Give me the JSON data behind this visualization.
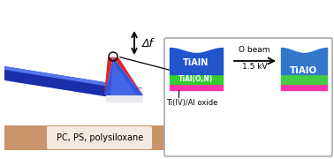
{
  "bg_color": "#ffffff",
  "substrate_color": "#c8956a",
  "substrate_text": "PC, PS, polysiloxane",
  "substrate_text_bg": "#f5e8de",
  "delta_f_text": "Δf",
  "box_border_color": "#aaaaaa",
  "layer_blue_left": "#2255cc",
  "layer_green_left": "#33cc33",
  "layer_pink_left": "#ff33aa",
  "layer_blue_right": "#3377cc",
  "layer_green_right": "#44cc44",
  "layer_pink_right": "#ff33aa",
  "label_tialn": "TiAlN",
  "label_tialon": "TiAl(O,N)",
  "label_oxide": "Ti(IV)/Al oxide",
  "label_tialio": "TiAlO",
  "arm_dark_blue": "#1a2eaa",
  "arm_mid_blue": "#2244cc",
  "arm_light_blue": "#5577ee",
  "tip_blue": "#3355dd",
  "tip_light": "#8899ee",
  "tip_red": "#dd2222",
  "tip_white": "#e8eaf0"
}
